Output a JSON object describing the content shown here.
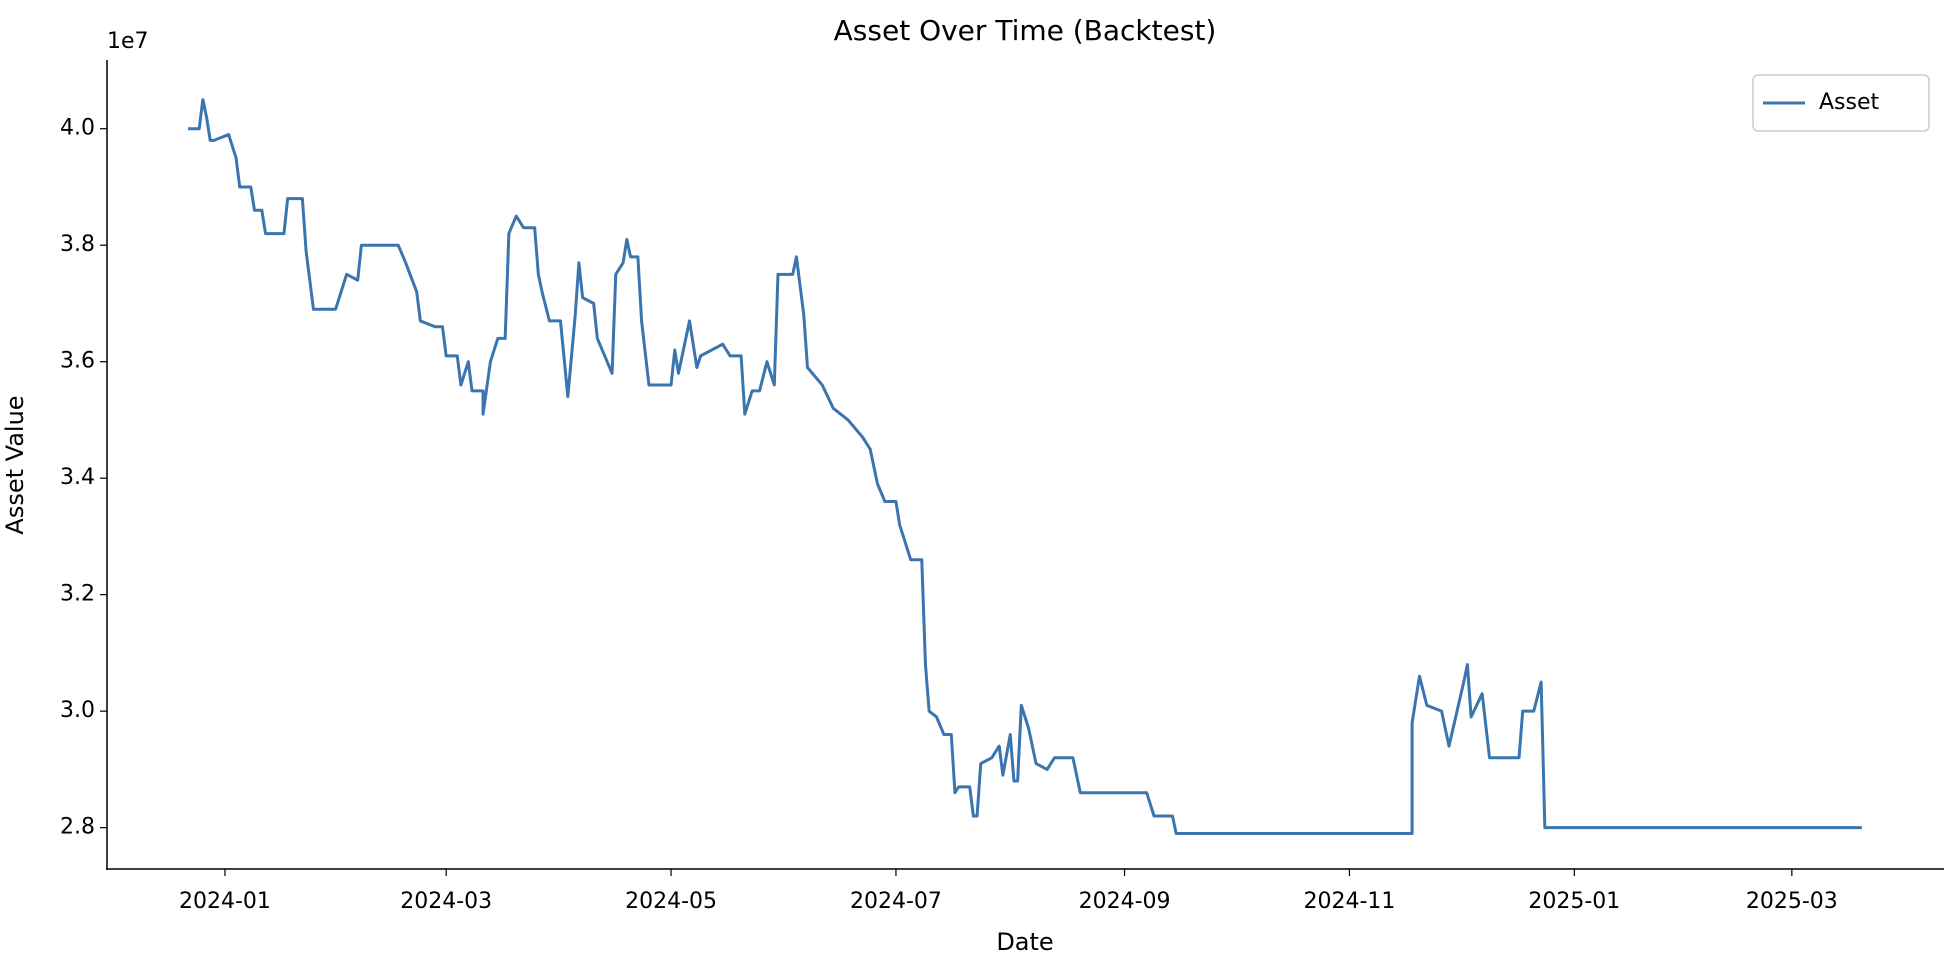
{
  "chart_data": {
    "type": "line",
    "title": "Asset Over Time (Backtest)",
    "x_label": "Date",
    "y_label": "Asset Value",
    "y_offset_label": "1e7",
    "legend": "upper right",
    "grid": false,
    "xlim": [
      "2023-11-30",
      "2025-04-11"
    ],
    "xticks": [
      {
        "value": "2024-01-01",
        "label": "2024-01"
      },
      {
        "value": "2024-03-01",
        "label": "2024-03"
      },
      {
        "value": "2024-05-01",
        "label": "2024-05"
      },
      {
        "value": "2024-07-01",
        "label": "2024-07"
      },
      {
        "value": "2024-09-01",
        "label": "2024-09"
      },
      {
        "value": "2024-11-01",
        "label": "2024-11"
      },
      {
        "value": "2025-01-01",
        "label": "2025-01"
      },
      {
        "value": "2025-03-01",
        "label": "2025-03"
      }
    ],
    "ylim": [
      27290000,
      41180000
    ],
    "yticks": [
      {
        "value": 28000000,
        "label": "2.8"
      },
      {
        "value": 30000000,
        "label": "3.0"
      },
      {
        "value": 32000000,
        "label": "3.2"
      },
      {
        "value": 34000000,
        "label": "3.4"
      },
      {
        "value": 36000000,
        "label": "3.6"
      },
      {
        "value": 38000000,
        "label": "3.8"
      },
      {
        "value": 40000000,
        "label": "4.0"
      }
    ],
    "x": [
      "2023-12-22",
      "2023-12-25",
      "2023-12-26",
      "2023-12-27",
      "2023-12-28",
      "2023-12-29",
      "2024-01-02",
      "2024-01-04",
      "2024-01-05",
      "2024-01-08",
      "2024-01-09",
      "2024-01-11",
      "2024-01-12",
      "2024-01-17",
      "2024-01-18",
      "2024-01-22",
      "2024-01-23",
      "2024-01-25",
      "2024-01-31",
      "2024-02-03",
      "2024-02-06",
      "2024-02-07",
      "2024-02-17",
      "2024-02-19",
      "2024-02-22",
      "2024-02-23",
      "2024-02-27",
      "2024-02-29",
      "2024-03-01",
      "2024-03-04",
      "2024-03-05",
      "2024-03-07",
      "2024-03-08",
      "2024-03-11",
      "2024-03-11",
      "2024-03-13",
      "2024-03-15",
      "2024-03-17",
      "2024-03-18",
      "2024-03-20",
      "2024-03-22",
      "2024-03-25",
      "2024-03-26",
      "2024-03-27",
      "2024-03-29",
      "2024-04-01",
      "2024-04-03",
      "2024-04-05",
      "2024-04-06",
      "2024-04-07",
      "2024-04-10",
      "2024-04-11",
      "2024-04-15",
      "2024-04-16",
      "2024-04-18",
      "2024-04-19",
      "2024-04-20",
      "2024-04-22",
      "2024-04-23",
      "2024-04-25",
      "2024-05-01",
      "2024-05-02",
      "2024-05-03",
      "2024-05-06",
      "2024-05-08",
      "2024-05-09",
      "2024-05-15",
      "2024-05-17",
      "2024-05-20",
      "2024-05-21",
      "2024-05-23",
      "2024-05-25",
      "2024-05-27",
      "2024-05-29",
      "2024-05-30",
      "2024-06-03",
      "2024-06-04",
      "2024-06-06",
      "2024-06-07",
      "2024-06-11",
      "2024-06-14",
      "2024-06-18",
      "2024-06-22",
      "2024-06-24",
      "2024-06-26",
      "2024-06-28",
      "2024-07-01",
      "2024-07-02",
      "2024-07-05",
      "2024-07-08",
      "2024-07-09",
      "2024-07-10",
      "2024-07-12",
      "2024-07-14",
      "2024-07-16",
      "2024-07-17",
      "2024-07-18",
      "2024-07-21",
      "2024-07-22",
      "2024-07-23",
      "2024-07-24",
      "2024-07-27",
      "2024-07-29",
      "2024-07-30",
      "2024-08-01",
      "2024-08-02",
      "2024-08-03",
      "2024-08-04",
      "2024-08-06",
      "2024-08-08",
      "2024-08-11",
      "2024-08-13",
      "2024-08-18",
      "2024-08-20",
      "2024-09-07",
      "2024-09-09",
      "2024-09-14",
      "2024-09-15",
      "2024-11-18",
      "2024-11-18",
      "2024-11-20",
      "2024-11-22",
      "2024-11-26",
      "2024-11-28",
      "2024-12-02",
      "2024-12-03",
      "2024-12-04",
      "2024-12-07",
      "2024-12-09",
      "2024-12-17",
      "2024-12-18",
      "2024-12-21",
      "2024-12-23",
      "2024-12-24",
      "2025-03-20"
    ],
    "series": [
      {
        "name": "Asset",
        "color": "#3a75b0",
        "values": [
          40000000,
          40000000,
          40500000,
          40200000,
          39800000,
          39800000,
          39900000,
          39500000,
          39000000,
          39000000,
          38600000,
          38600000,
          38200000,
          38200000,
          38800000,
          38800000,
          37900000,
          36900000,
          36900000,
          37500000,
          37400000,
          38000000,
          38000000,
          37700000,
          37200000,
          36700000,
          36600000,
          36600000,
          36100000,
          36100000,
          35600000,
          36000000,
          35500000,
          35500000,
          35100000,
          36000000,
          36400000,
          36400000,
          38200000,
          38500000,
          38300000,
          38300000,
          37500000,
          37200000,
          36700000,
          36700000,
          35400000,
          36800000,
          37700000,
          37100000,
          37000000,
          36400000,
          35800000,
          37500000,
          37700000,
          38100000,
          37800000,
          37800000,
          36700000,
          35600000,
          35600000,
          36200000,
          35800000,
          36700000,
          35900000,
          36100000,
          36300000,
          36100000,
          36100000,
          35100000,
          35500000,
          35500000,
          36000000,
          35600000,
          37500000,
          37500000,
          37800000,
          36800000,
          35900000,
          35600000,
          35200000,
          35000000,
          34700000,
          34500000,
          33900000,
          33600000,
          33600000,
          33200000,
          32600000,
          32600000,
          30800000,
          30000000,
          29900000,
          29600000,
          29600000,
          28600000,
          28700000,
          28700000,
          28200000,
          28200000,
          29100000,
          29200000,
          29400000,
          28900000,
          29600000,
          28800000,
          28800000,
          30100000,
          29700000,
          29100000,
          29000000,
          29200000,
          29200000,
          28600000,
          28600000,
          28200000,
          28200000,
          27900000,
          27900000,
          29800000,
          30600000,
          30100000,
          30000000,
          29400000,
          30500000,
          30800000,
          29900000,
          30300000,
          29200000,
          29200000,
          30000000,
          30000000,
          30500000,
          28000000,
          28000000
        ]
      }
    ]
  }
}
